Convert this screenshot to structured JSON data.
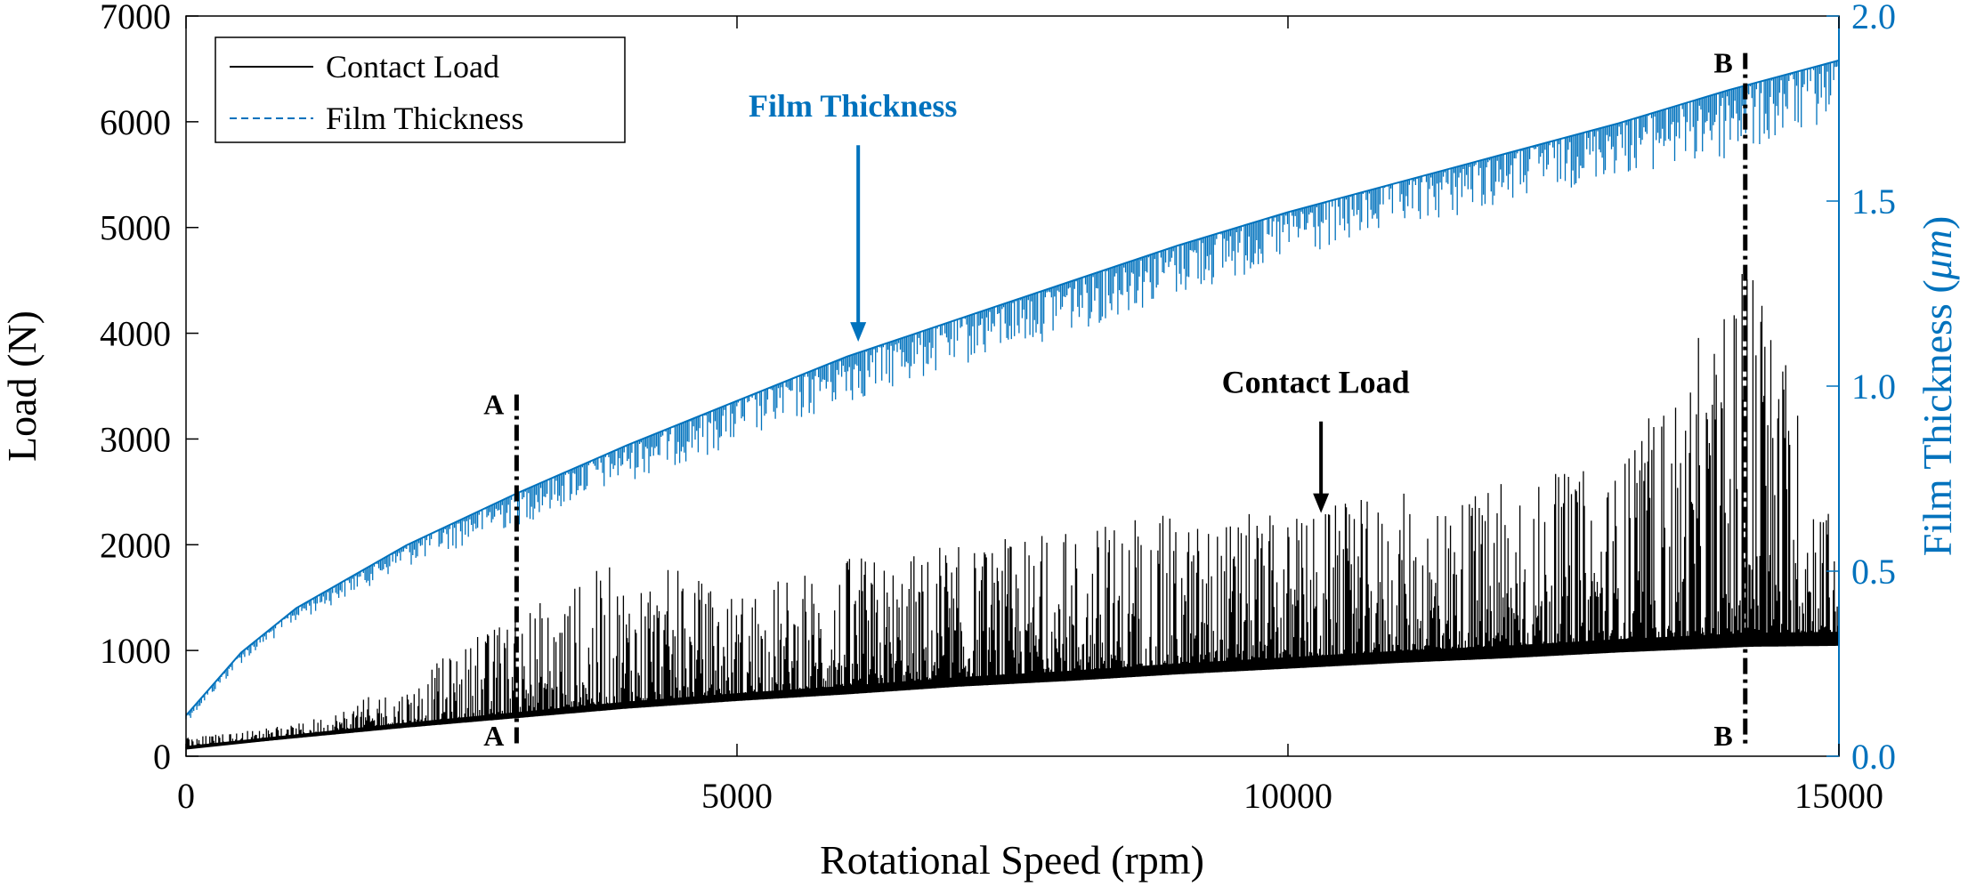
{
  "chart_data": {
    "type": "line",
    "xlabel": "Rotational Speed (rpm)",
    "ylabel": "Load (N)",
    "y2label_main": "Film Thickness (",
    "y2label_unit": "μm",
    "y2label_close": ")",
    "xlim": [
      0,
      15000
    ],
    "ylim": [
      0,
      7000
    ],
    "y2lim": [
      0.0,
      2.0
    ],
    "x_ticks": [
      "0",
      "5000",
      "10000",
      "15000"
    ],
    "y_ticks": [
      "0",
      "1000",
      "2000",
      "3000",
      "4000",
      "5000",
      "6000",
      "7000"
    ],
    "y2_ticks": [
      "0.0",
      "0.5",
      "1.0",
      "1.5",
      "2.0"
    ],
    "grid": false,
    "legend_position": "top-left",
    "colors": {
      "contact_load": "#000000",
      "film_thickness": "#0072BD"
    },
    "series": [
      {
        "name": "Contact Load",
        "axis": "left",
        "style": "solid",
        "x": [
          0,
          1000,
          2000,
          3000,
          4000,
          5000,
          6000,
          7000,
          8000,
          9000,
          10000,
          11000,
          12000,
          13000,
          14000,
          14200,
          15000
        ],
        "baseline": [
          80,
          190,
          300,
          400,
          500,
          580,
          650,
          730,
          790,
          860,
          920,
          980,
          1030,
          1090,
          1140,
          1150,
          1160
        ],
        "peak": [
          180,
          300,
          700,
          1400,
          1900,
          1600,
          1900,
          2000,
          2200,
          2300,
          2300,
          2500,
          2600,
          2800,
          4400,
          5100,
          2000
        ]
      },
      {
        "name": "Film Thickness",
        "axis": "right",
        "style": "dashed",
        "x": [
          0,
          500,
          1000,
          2000,
          3000,
          4000,
          5000,
          6000,
          7000,
          8000,
          9000,
          10000,
          11000,
          12000,
          13000,
          14000,
          15000
        ],
        "upper": [
          0.11,
          0.28,
          0.4,
          0.57,
          0.71,
          0.84,
          0.96,
          1.08,
          1.18,
          1.28,
          1.38,
          1.47,
          1.55,
          1.63,
          1.71,
          1.8,
          1.88
        ],
        "lower": [
          0.09,
          0.25,
          0.36,
          0.51,
          0.62,
          0.74,
          0.84,
          0.95,
          1.05,
          1.14,
          1.24,
          1.33,
          1.42,
          1.49,
          1.57,
          1.6,
          1.72
        ]
      }
    ],
    "annotations": [
      {
        "label": "Film Thickness",
        "x": 6100,
        "y_right": 1.675,
        "arrow_to_y_right": 1.12,
        "color": "#0072BD"
      },
      {
        "label": "Contact Load",
        "x": 10300,
        "y_left": 3250,
        "arrow_to_y_left": 2300,
        "color": "#000000"
      }
    ],
    "markers": [
      {
        "label": "A",
        "x": 3000,
        "y_top": 3420,
        "y_bottom": 100
      },
      {
        "label": "B",
        "x": 14150,
        "y_top": 6650,
        "y_bottom": 120
      }
    ]
  }
}
